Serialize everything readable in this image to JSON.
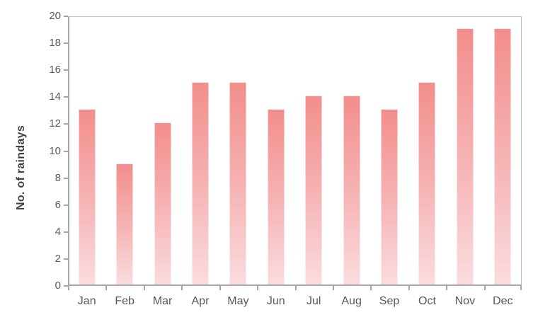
{
  "chart_data": {
    "type": "bar",
    "title": "",
    "categories": [
      "Jan",
      "Feb",
      "Mar",
      "Apr",
      "May",
      "Jun",
      "Jul",
      "Aug",
      "Sep",
      "Oct",
      "Nov",
      "Dec"
    ],
    "values": [
      13,
      9,
      12,
      15,
      15,
      13,
      14,
      14,
      13,
      15,
      19,
      19
    ],
    "xlabel": "",
    "ylabel": "No. of raindays",
    "ylim": [
      0,
      20
    ],
    "ytick_step": 2,
    "ytick_labels": [
      "0",
      "2",
      "4",
      "6",
      "8",
      "10",
      "12",
      "14",
      "16",
      "18",
      "20"
    ],
    "grid": false,
    "legend": false,
    "layout": {
      "legend_position": "none",
      "bar_gradient_direction": "top-to-bottom"
    },
    "colors": {
      "bar_gradient_top": "#f28e8c",
      "bar_gradient_mid": "#f6b3b4",
      "bar_gradient_bottom": "#fadcde",
      "axis_line": "#a6a6a6",
      "plot_border": "#c6c6c6",
      "tick_label": "#595959",
      "axis_title": "#404040",
      "background": "#ffffff"
    }
  }
}
